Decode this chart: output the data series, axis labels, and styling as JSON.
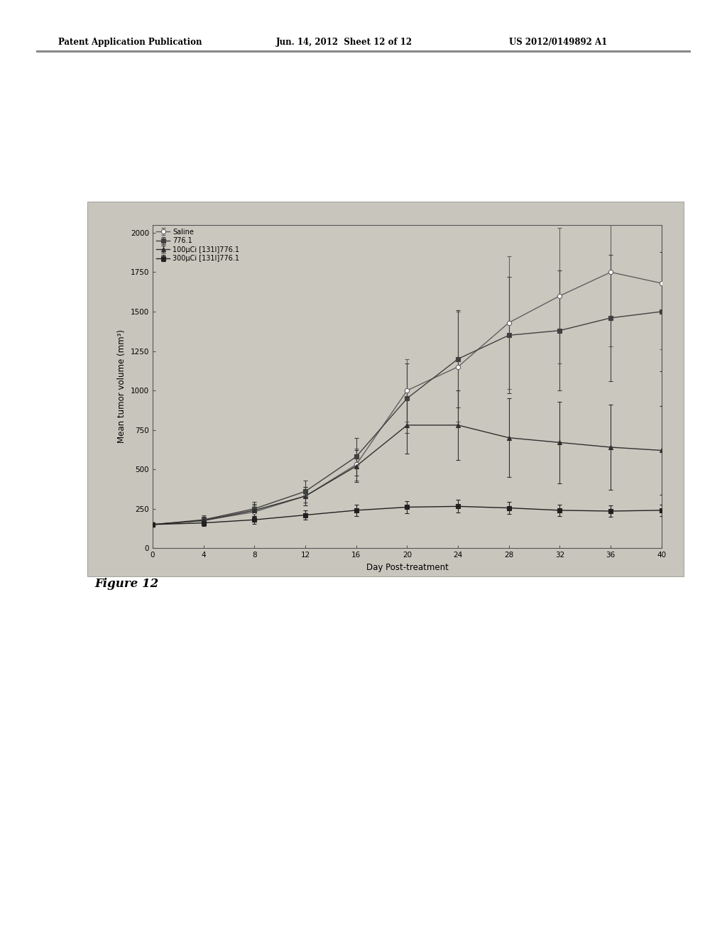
{
  "header_left": "Patent Application Publication",
  "header_mid": "Jun. 14, 2012  Sheet 12 of 12",
  "header_right": "US 2012/0149892 A1",
  "figure_label": "Figure 12",
  "xlabel": "Day Post-treatment",
  "ylabel": "Mean tumor volume (mm³)",
  "xlim": [
    0,
    40
  ],
  "ylim": [
    0,
    2050
  ],
  "xticks": [
    0,
    4,
    8,
    12,
    16,
    20,
    24,
    28,
    32,
    36,
    40
  ],
  "yticks": [
    0,
    250,
    500,
    750,
    1000,
    1250,
    1500,
    1750,
    2000
  ],
  "bg_color": "#c8c8c8",
  "page_bg": "#e8e8e0",
  "series": [
    {
      "label": "Saline",
      "color": "#606060",
      "marker": "o",
      "markerfacecolor": "white",
      "markeredgecolor": "#606060",
      "x": [
        0,
        4,
        8,
        12,
        16,
        20,
        24,
        28,
        32,
        36,
        40
      ],
      "y": [
        150,
        175,
        230,
        330,
        530,
        1000,
        1150,
        1430,
        1600,
        1750,
        1680
      ],
      "yerr": [
        15,
        25,
        40,
        60,
        100,
        200,
        350,
        420,
        430,
        470,
        420
      ]
    },
    {
      "label": "776.1",
      "color": "#404040",
      "marker": "s",
      "markerfacecolor": "#404040",
      "markeredgecolor": "#404040",
      "x": [
        0,
        4,
        8,
        12,
        16,
        20,
        24,
        28,
        32,
        36,
        40
      ],
      "y": [
        150,
        180,
        250,
        360,
        580,
        950,
        1200,
        1350,
        1380,
        1460,
        1500
      ],
      "yerr": [
        15,
        30,
        45,
        70,
        120,
        220,
        310,
        370,
        380,
        400,
        380
      ]
    },
    {
      "label": "100µCi [131I]776.1",
      "color": "#303030",
      "marker": "^",
      "markerfacecolor": "#303030",
      "markeredgecolor": "#303030",
      "x": [
        0,
        4,
        8,
        12,
        16,
        20,
        24,
        28,
        32,
        36,
        40
      ],
      "y": [
        150,
        175,
        240,
        330,
        520,
        780,
        780,
        700,
        670,
        640,
        620
      ],
      "yerr": [
        15,
        25,
        40,
        60,
        100,
        180,
        220,
        250,
        260,
        270,
        280
      ]
    },
    {
      "label": "300µCi [131I]776.1",
      "color": "#202020",
      "marker": "s",
      "markerfacecolor": "#202020",
      "markeredgecolor": "#202020",
      "x": [
        0,
        4,
        8,
        12,
        16,
        20,
        24,
        28,
        32,
        36,
        40
      ],
      "y": [
        150,
        160,
        180,
        210,
        240,
        260,
        265,
        255,
        240,
        235,
        240
      ],
      "yerr": [
        15,
        20,
        25,
        30,
        35,
        40,
        40,
        38,
        35,
        35,
        35
      ]
    }
  ]
}
